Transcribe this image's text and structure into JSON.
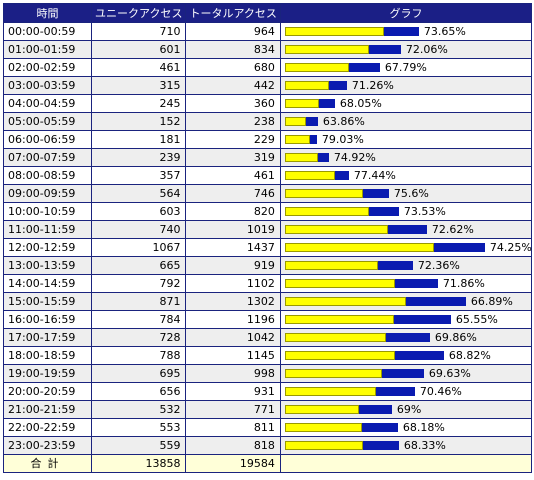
{
  "header": {
    "time": "時間",
    "unique": "ユニークアクセス",
    "total": "トータルアクセス",
    "graph": "グラフ"
  },
  "rows": [
    {
      "time": "00:00-00:59",
      "unique": 710,
      "total": 964,
      "pct": "73.65%"
    },
    {
      "time": "01:00-01:59",
      "unique": 601,
      "total": 834,
      "pct": "72.06%"
    },
    {
      "time": "02:00-02:59",
      "unique": 461,
      "total": 680,
      "pct": "67.79%"
    },
    {
      "time": "03:00-03:59",
      "unique": 315,
      "total": 442,
      "pct": "71.26%"
    },
    {
      "time": "04:00-04:59",
      "unique": 245,
      "total": 360,
      "pct": "68.05%"
    },
    {
      "time": "05:00-05:59",
      "unique": 152,
      "total": 238,
      "pct": "63.86%"
    },
    {
      "time": "06:00-06:59",
      "unique": 181,
      "total": 229,
      "pct": "79.03%"
    },
    {
      "time": "07:00-07:59",
      "unique": 239,
      "total": 319,
      "pct": "74.92%"
    },
    {
      "time": "08:00-08:59",
      "unique": 357,
      "total": 461,
      "pct": "77.44%"
    },
    {
      "time": "09:00-09:59",
      "unique": 564,
      "total": 746,
      "pct": "75.6%"
    },
    {
      "time": "10:00-10:59",
      "unique": 603,
      "total": 820,
      "pct": "73.53%"
    },
    {
      "time": "11:00-11:59",
      "unique": 740,
      "total": 1019,
      "pct": "72.62%"
    },
    {
      "time": "12:00-12:59",
      "unique": 1067,
      "total": 1437,
      "pct": "74.25%"
    },
    {
      "time": "13:00-13:59",
      "unique": 665,
      "total": 919,
      "pct": "72.36%"
    },
    {
      "time": "14:00-14:59",
      "unique": 792,
      "total": 1102,
      "pct": "71.86%"
    },
    {
      "time": "15:00-15:59",
      "unique": 871,
      "total": 1302,
      "pct": "66.89%"
    },
    {
      "time": "16:00-16:59",
      "unique": 784,
      "total": 1196,
      "pct": "65.55%"
    },
    {
      "time": "17:00-17:59",
      "unique": 728,
      "total": 1042,
      "pct": "69.86%"
    },
    {
      "time": "18:00-18:59",
      "unique": 788,
      "total": 1145,
      "pct": "68.82%"
    },
    {
      "time": "19:00-19:59",
      "unique": 695,
      "total": 998,
      "pct": "69.63%"
    },
    {
      "time": "20:00-20:59",
      "unique": 656,
      "total": 931,
      "pct": "70.46%"
    },
    {
      "time": "21:00-21:59",
      "unique": 532,
      "total": 771,
      "pct": "69%"
    },
    {
      "time": "22:00-22:59",
      "unique": 553,
      "total": 811,
      "pct": "68.18%"
    },
    {
      "time": "23:00-23:59",
      "unique": 559,
      "total": 818,
      "pct": "68.33%"
    }
  ],
  "summary": {
    "label": "合計",
    "unique": 13858,
    "total": 19584
  },
  "colors": {
    "header_bg": "#1b1f86",
    "unique_bar": "#ffff00",
    "total_bar": "#0a1bb0"
  }
}
